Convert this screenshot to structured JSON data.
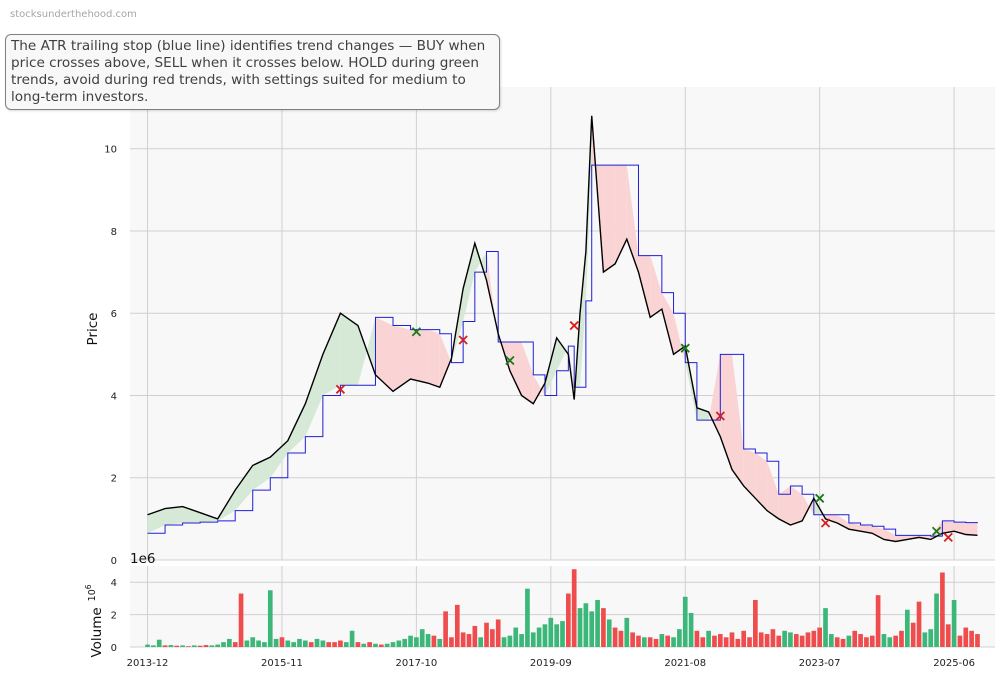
{
  "header": {
    "watermark": "stocksunderthehood.com",
    "description": "The ATR trailing stop (blue line) identifies trend changes — BUY when price crosses above, SELL when it crosses below. HOLD during green trends, avoid during red trends, with settings suited for medium to long-term investors."
  },
  "colors": {
    "price": "#000000",
    "stop": "#1f1fd6",
    "bull_fill": "#d6e9d6",
    "bear_fill": "#fad4d4",
    "buy_marker": "#1a7a1a",
    "sell_marker": "#d61f1f",
    "vol_up": "#3cb77a",
    "vol_down": "#ef4d4d",
    "panel_bg": "#f8f8f8",
    "grid": "#d0d0d0"
  },
  "chart_data": [
    {
      "type": "line",
      "ylabel": "Price",
      "ylim": [
        0,
        11.5
      ],
      "yticks": [
        0,
        2,
        4,
        6,
        8,
        10
      ],
      "grid": true,
      "xlim": [
        "2013-09",
        "2026-01"
      ],
      "xticks": [
        "2013-12",
        "2015-11",
        "2017-10",
        "2019-09",
        "2021-08",
        "2023-07",
        "2025-06"
      ],
      "series": [
        {
          "role": "price",
          "x": [
            "2013-12",
            "2014-03",
            "2014-06",
            "2014-09",
            "2014-12",
            "2015-03",
            "2015-06",
            "2015-09",
            "2015-12",
            "2016-03",
            "2016-06",
            "2016-09",
            "2016-12",
            "2017-03",
            "2017-06",
            "2017-09",
            "2017-12",
            "2018-02",
            "2018-04",
            "2018-06",
            "2018-08",
            "2018-10",
            "2018-12",
            "2019-02",
            "2019-04",
            "2019-06",
            "2019-08",
            "2019-10",
            "2019-12",
            "2020-01",
            "2020-02",
            "2020-03",
            "2020-04",
            "2020-06",
            "2020-08",
            "2020-10",
            "2020-12",
            "2021-02",
            "2021-04",
            "2021-06",
            "2021-08",
            "2021-10",
            "2021-12",
            "2022-02",
            "2022-04",
            "2022-06",
            "2022-08",
            "2022-10",
            "2022-12",
            "2023-02",
            "2023-04",
            "2023-06",
            "2023-08",
            "2023-10",
            "2023-12",
            "2024-02",
            "2024-04",
            "2024-06",
            "2024-08",
            "2024-10",
            "2024-12",
            "2025-02",
            "2025-04",
            "2025-06",
            "2025-08",
            "2025-10"
          ],
          "values": [
            1.1,
            1.25,
            1.3,
            1.15,
            1.0,
            1.7,
            2.3,
            2.5,
            2.9,
            3.8,
            5.0,
            6.0,
            5.7,
            4.5,
            4.1,
            4.4,
            4.3,
            4.2,
            4.9,
            6.6,
            7.7,
            6.8,
            5.5,
            4.6,
            4.0,
            3.8,
            4.3,
            5.4,
            5.0,
            3.9,
            6.0,
            7.5,
            10.8,
            7.0,
            7.2,
            7.8,
            7.0,
            5.9,
            6.1,
            5.0,
            5.2,
            3.7,
            3.6,
            3.0,
            2.2,
            1.8,
            1.5,
            1.2,
            1.0,
            0.85,
            0.95,
            1.5,
            1.0,
            0.9,
            0.75,
            0.7,
            0.65,
            0.5,
            0.45,
            0.5,
            0.55,
            0.5,
            0.65,
            0.7,
            0.62,
            0.6
          ]
        },
        {
          "role": "atr_stop",
          "x": [
            "2013-12",
            "2014-03",
            "2014-06",
            "2014-09",
            "2014-12",
            "2015-03",
            "2015-06",
            "2015-09",
            "2015-12",
            "2016-03",
            "2016-06",
            "2016-09",
            "2016-12",
            "2017-03",
            "2017-06",
            "2017-09",
            "2017-12",
            "2018-02",
            "2018-04",
            "2018-06",
            "2018-08",
            "2018-10",
            "2018-12",
            "2019-02",
            "2019-04",
            "2019-06",
            "2019-08",
            "2019-10",
            "2019-12",
            "2020-01",
            "2020-02",
            "2020-03",
            "2020-04",
            "2020-06",
            "2020-08",
            "2020-10",
            "2020-12",
            "2021-02",
            "2021-04",
            "2021-06",
            "2021-08",
            "2021-10",
            "2021-12",
            "2022-02",
            "2022-04",
            "2022-06",
            "2022-08",
            "2022-10",
            "2022-12",
            "2023-02",
            "2023-04",
            "2023-06",
            "2023-08",
            "2023-10",
            "2023-12",
            "2024-02",
            "2024-04",
            "2024-06",
            "2024-08",
            "2024-10",
            "2024-12",
            "2025-02",
            "2025-04",
            "2025-06",
            "2025-08",
            "2025-10"
          ],
          "values": [
            0.65,
            0.85,
            0.9,
            0.92,
            0.95,
            1.2,
            1.7,
            2.0,
            2.6,
            3.0,
            4.0,
            4.25,
            4.25,
            5.9,
            5.7,
            5.6,
            5.6,
            5.5,
            4.8,
            5.8,
            7.0,
            7.5,
            5.3,
            5.3,
            5.3,
            4.5,
            4.0,
            4.6,
            5.2,
            4.2,
            4.2,
            6.3,
            9.6,
            9.6,
            9.6,
            9.6,
            7.4,
            7.4,
            6.5,
            6.0,
            4.8,
            3.4,
            3.4,
            5.0,
            5.0,
            2.7,
            2.6,
            2.4,
            1.6,
            1.8,
            1.6,
            1.1,
            1.1,
            1.1,
            0.9,
            0.85,
            0.82,
            0.75,
            0.6,
            0.6,
            0.6,
            0.58,
            0.95,
            0.92,
            0.91,
            0.9
          ]
        }
      ],
      "signals": [
        {
          "type": "sell",
          "x": "2016-09",
          "y": 4.15
        },
        {
          "type": "buy",
          "x": "2017-10",
          "y": 5.55
        },
        {
          "type": "sell",
          "x": "2018-06",
          "y": 5.35
        },
        {
          "type": "buy",
          "x": "2019-02",
          "y": 4.85
        },
        {
          "type": "sell",
          "x": "2020-01",
          "y": 5.7
        },
        {
          "type": "buy",
          "x": "2021-08",
          "y": 5.15
        },
        {
          "type": "sell",
          "x": "2022-02",
          "y": 3.5
        },
        {
          "type": "buy",
          "x": "2023-07",
          "y": 1.5
        },
        {
          "type": "sell",
          "x": "2023-08",
          "y": 0.9
        },
        {
          "type": "buy",
          "x": "2025-03",
          "y": 0.7
        },
        {
          "type": "sell",
          "x": "2025-05",
          "y": 0.55
        }
      ]
    },
    {
      "type": "bar",
      "ylabel": "Volume",
      "exponent_label": "1e6",
      "ylim": [
        0,
        5
      ],
      "yticks": [
        0,
        2,
        4
      ],
      "grid": true,
      "xlim": [
        "2013-09",
        "2026-01"
      ],
      "x": [
        "2013-12",
        "2014-01",
        "2014-02",
        "2014-03",
        "2014-04",
        "2014-05",
        "2014-06",
        "2014-07",
        "2014-08",
        "2014-09",
        "2014-10",
        "2014-11",
        "2014-12",
        "2015-01",
        "2015-02",
        "2015-03",
        "2015-04",
        "2015-05",
        "2015-06",
        "2015-07",
        "2015-08",
        "2015-09",
        "2015-10",
        "2015-11",
        "2015-12",
        "2016-01",
        "2016-02",
        "2016-03",
        "2016-04",
        "2016-05",
        "2016-06",
        "2016-07",
        "2016-08",
        "2016-09",
        "2016-10",
        "2016-11",
        "2016-12",
        "2017-01",
        "2017-02",
        "2017-03",
        "2017-04",
        "2017-05",
        "2017-06",
        "2017-07",
        "2017-08",
        "2017-09",
        "2017-10",
        "2017-11",
        "2017-12",
        "2018-01",
        "2018-02",
        "2018-03",
        "2018-04",
        "2018-05",
        "2018-06",
        "2018-07",
        "2018-08",
        "2018-09",
        "2018-10",
        "2018-11",
        "2018-12",
        "2019-01",
        "2019-02",
        "2019-03",
        "2019-04",
        "2019-05",
        "2019-06",
        "2019-07",
        "2019-08",
        "2019-09",
        "2019-10",
        "2019-11",
        "2019-12",
        "2020-01",
        "2020-02",
        "2020-03",
        "2020-04",
        "2020-05",
        "2020-06",
        "2020-07",
        "2020-08",
        "2020-09",
        "2020-10",
        "2020-11",
        "2020-12",
        "2021-01",
        "2021-02",
        "2021-03",
        "2021-04",
        "2021-05",
        "2021-06",
        "2021-07",
        "2021-08",
        "2021-09",
        "2021-10",
        "2021-11",
        "2021-12",
        "2022-01",
        "2022-02",
        "2022-03",
        "2022-04",
        "2022-05",
        "2022-06",
        "2022-07",
        "2022-08",
        "2022-09",
        "2022-10",
        "2022-11",
        "2022-12",
        "2023-01",
        "2023-02",
        "2023-03",
        "2023-04",
        "2023-05",
        "2023-06",
        "2023-07",
        "2023-08",
        "2023-09",
        "2023-10",
        "2023-11",
        "2023-12",
        "2024-01",
        "2024-02",
        "2024-03",
        "2024-04",
        "2024-05",
        "2024-06",
        "2024-07",
        "2024-08",
        "2024-09",
        "2024-10",
        "2024-11",
        "2024-12",
        "2025-01",
        "2025-02",
        "2025-03",
        "2025-04",
        "2025-05",
        "2025-06",
        "2025-07",
        "2025-08",
        "2025-09",
        "2025-10"
      ],
      "values": [
        0.15,
        0.1,
        0.45,
        0.1,
        0.12,
        0.08,
        0.1,
        0.05,
        0.1,
        0.08,
        0.12,
        0.1,
        0.15,
        0.3,
        0.5,
        0.3,
        3.3,
        0.4,
        0.6,
        0.4,
        0.3,
        3.5,
        0.5,
        0.6,
        0.4,
        0.3,
        0.5,
        0.4,
        0.3,
        0.5,
        0.4,
        0.3,
        0.3,
        0.4,
        0.3,
        1.0,
        0.3,
        0.2,
        0.3,
        0.2,
        0.15,
        0.2,
        0.3,
        0.4,
        0.5,
        0.7,
        0.6,
        1.1,
        0.8,
        0.7,
        0.5,
        2.2,
        0.6,
        2.6,
        0.9,
        0.8,
        1.3,
        0.6,
        1.5,
        1.1,
        1.7,
        0.6,
        0.7,
        1.2,
        0.8,
        3.6,
        0.9,
        1.2,
        1.4,
        1.8,
        1.4,
        1.6,
        3.3,
        4.8,
        2.4,
        2.7,
        2.2,
        2.9,
        2.4,
        1.7,
        1.2,
        1.0,
        1.8,
        0.9,
        0.7,
        0.6,
        0.6,
        0.5,
        0.8,
        0.7,
        0.6,
        1.1,
        3.1,
        2.1,
        1.0,
        0.6,
        1.0,
        0.7,
        0.8,
        0.6,
        0.9,
        0.5,
        1.0,
        0.6,
        2.9,
        0.9,
        0.8,
        1.1,
        0.7,
        1.0,
        0.9,
        0.8,
        0.7,
        0.9,
        1.0,
        1.2,
        2.4,
        0.8,
        0.6,
        0.5,
        0.7,
        1.0,
        0.8,
        0.6,
        0.7,
        3.2,
        0.8,
        0.6,
        0.7,
        1.0,
        2.3,
        1.5,
        2.8,
        0.9,
        1.1,
        3.3,
        4.6,
        1.4,
        2.9,
        0.7,
        1.2,
        1.0,
        0.8
      ],
      "directions": [
        "up",
        "up",
        "up",
        "down",
        "up",
        "down",
        "up",
        "down",
        "up",
        "down",
        "down",
        "up",
        "up",
        "up",
        "up",
        "down",
        "down",
        "up",
        "up",
        "up",
        "up",
        "up",
        "up",
        "down",
        "up",
        "up",
        "up",
        "up",
        "down",
        "up",
        "up",
        "down",
        "down",
        "down",
        "up",
        "up",
        "down",
        "up",
        "down",
        "up",
        "down",
        "up",
        "up",
        "up",
        "up",
        "up",
        "up",
        "up",
        "up",
        "down",
        "up",
        "down",
        "down",
        "down",
        "down",
        "down",
        "down",
        "up",
        "down",
        "down",
        "down",
        "up",
        "up",
        "up",
        "up",
        "up",
        "up",
        "up",
        "up",
        "up",
        "up",
        "up",
        "down",
        "down",
        "up",
        "up",
        "up",
        "up",
        "down",
        "up",
        "down",
        "down",
        "up",
        "down",
        "down",
        "up",
        "down",
        "down",
        "up",
        "down",
        "up",
        "up",
        "up",
        "up",
        "down",
        "down",
        "up",
        "down",
        "down",
        "down",
        "down",
        "down",
        "down",
        "down",
        "down",
        "down",
        "down",
        "down",
        "down",
        "up",
        "up",
        "down",
        "down",
        "down",
        "down",
        "down",
        "up",
        "up",
        "down",
        "down",
        "up",
        "down",
        "down",
        "down",
        "down",
        "down",
        "up",
        "up",
        "down",
        "down",
        "up",
        "down",
        "down",
        "up",
        "up",
        "up",
        "down",
        "down",
        "up",
        "down",
        "down",
        "down",
        "down"
      ]
    }
  ]
}
